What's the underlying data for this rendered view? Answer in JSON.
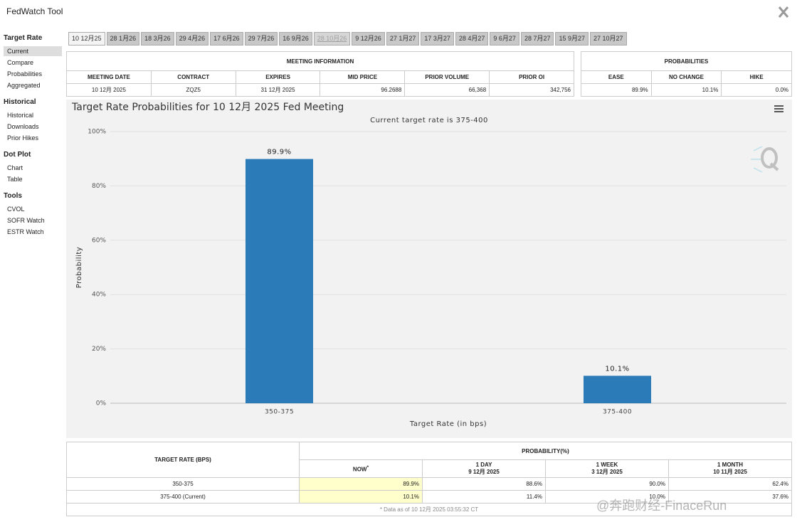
{
  "header": {
    "title": "FedWatch Tool"
  },
  "sidebar": [
    {
      "heading": "Target Rate",
      "items": [
        "Current",
        "Compare",
        "Probabilities",
        "Aggregated"
      ]
    },
    {
      "heading": "Historical",
      "items": [
        "Historical",
        "Downloads",
        "Prior Hikes"
      ]
    },
    {
      "heading": "Dot Plot",
      "items": [
        "Chart",
        "Table"
      ]
    },
    {
      "heading": "Tools",
      "items": [
        "CVOL",
        "SOFR Watch",
        "ESTR Watch"
      ]
    }
  ],
  "tabs": [
    "10 12月25",
    "28 1月26",
    "18 3月26",
    "29 4月26",
    "17 6月26",
    "29 7月26",
    "16 9月26",
    "28 10月26",
    "9 12月26",
    "27 1月27",
    "17 3月27",
    "28 4月27",
    "9 6月27",
    "28 7月27",
    "15 9月27",
    "27 10月27"
  ],
  "meeting_info": {
    "title": "MEETING INFORMATION",
    "columns": [
      "MEETING DATE",
      "CONTRACT",
      "EXPIRES",
      "MID PRICE",
      "PRIOR VOLUME",
      "PRIOR OI"
    ],
    "row": [
      "10 12月 2025",
      "ZQZ5",
      "31 12月 2025",
      "96.2688",
      "66,368",
      "342,756"
    ]
  },
  "probabilities": {
    "title": "PROBABILITIES",
    "columns": [
      "EASE",
      "NO CHANGE",
      "HIKE"
    ],
    "row": [
      "89.9%",
      "10.1%",
      "0.0%"
    ]
  },
  "chart_data": {
    "type": "bar",
    "title": "Target Rate Probabilities for 10 12月 2025 Fed Meeting",
    "subtitle": "Current target rate is 375-400",
    "y_label": "Probability",
    "x_label": "Target Rate (in bps)",
    "categories": [
      "350-375",
      "375-400"
    ],
    "values": [
      89.9,
      10.1
    ],
    "value_labels": [
      "89.9%",
      "10.1%"
    ],
    "color": "#2b7bb9",
    "ylim": [
      0,
      100
    ],
    "yticks": [
      {
        "value": 0,
        "label": "0%"
      },
      {
        "value": 20,
        "label": "20%"
      },
      {
        "value": 40,
        "label": "40%"
      },
      {
        "value": 60,
        "label": "60%"
      },
      {
        "value": 80,
        "label": "80%"
      },
      {
        "value": 100,
        "label": "100%"
      }
    ],
    "grid": true
  },
  "rate_table": {
    "row_header": "TARGET RATE (BPS)",
    "group_header": "PROBABILITY(%)",
    "columns": [
      {
        "label": "NOW",
        "note": "*"
      },
      {
        "label": "1 DAY",
        "date": "9 12月 2025"
      },
      {
        "label": "1 WEEK",
        "date": "3 12月 2025"
      },
      {
        "label": "1 MONTH",
        "date": "10 11月 2025"
      }
    ],
    "rows": [
      [
        "350-375",
        "89.9%",
        "88.6%",
        "90.0%",
        "62.4%"
      ],
      [
        "375-400 (Current)",
        "10.1%",
        "11.4%",
        "10.0%",
        "37.6%"
      ]
    ],
    "footnote": "* Data as of 10 12月 2025 03:55:32 CT"
  },
  "watermark": "@奔跑财经-FinaceRun"
}
